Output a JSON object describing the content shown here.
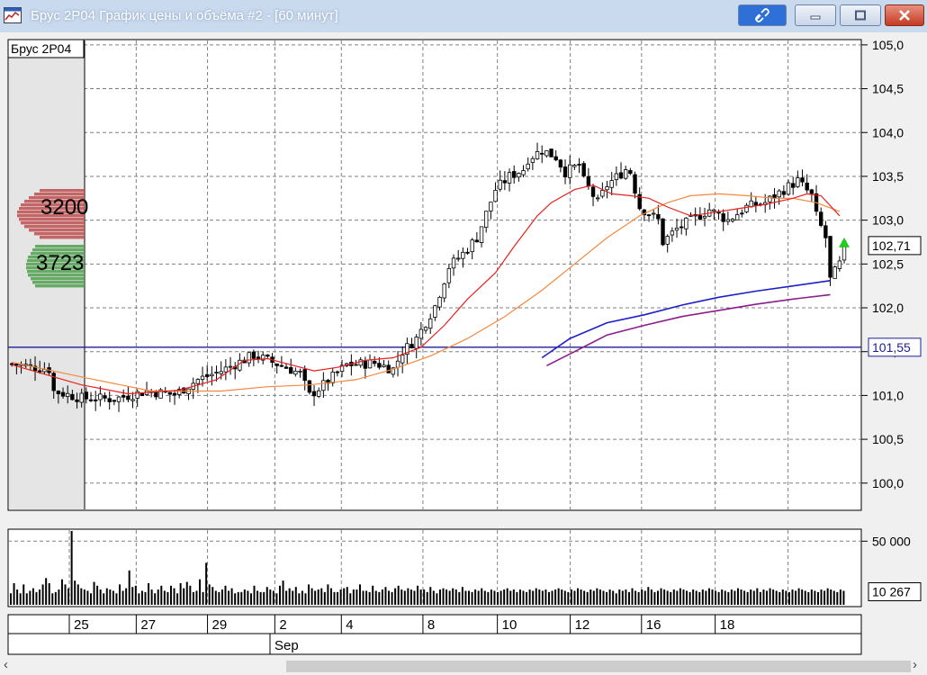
{
  "window": {
    "title": "Брус 2P04 График цены и объёма #2 - [60 минут]",
    "buttons": {
      "link": "link-icon",
      "minimize": "minimize-icon",
      "maximize": "maximize-icon",
      "close": "close-icon"
    }
  },
  "colors": {
    "bg": "#ffffff",
    "grid": "#808080",
    "candle": "#000000",
    "ma_fast": "#e8211f",
    "ma_slow": "#f5883e",
    "ma_blue": "#1e1ec8",
    "ma_purple": "#8a1e8a",
    "level_line": "#1e1e96",
    "profile_red": "#c05050",
    "profile_green": "#50a050",
    "arrow": "#22cc22"
  },
  "chart_data": [
    {
      "type": "candlestick",
      "title": "Брус 2P04",
      "ylim": [
        99.7,
        105.05
      ],
      "y_ticks": [
        "105,0",
        "104,5",
        "104,0",
        "103,5",
        "103,0",
        "102,5",
        "102,0",
        "101,5",
        "101,0",
        "100,5",
        "100,0"
      ],
      "y_tick_values": [
        105.0,
        104.5,
        104.0,
        103.5,
        103.0,
        102.5,
        102.0,
        101.5,
        101.0,
        100.5,
        100.0
      ],
      "last_price": {
        "value": 102.71,
        "label": "102,71"
      },
      "level": {
        "value": 101.55,
        "label": "101,55"
      },
      "grid": true,
      "x_dates": [
        "25",
        "27",
        "29",
        "2",
        "4",
        "8",
        "10",
        "12",
        "16",
        "18"
      ],
      "month_label": "Sep",
      "close_path": [
        [
          0,
          101.36
        ],
        [
          4,
          101.33
        ],
        [
          8,
          101.3
        ],
        [
          9,
          101.05
        ],
        [
          15,
          100.97
        ],
        [
          22,
          100.96
        ],
        [
          29,
          101.05
        ],
        [
          35,
          101.01
        ],
        [
          40,
          101.18
        ],
        [
          45,
          101.28
        ],
        [
          52,
          101.46
        ],
        [
          59,
          101.32
        ],
        [
          62,
          101.25
        ],
        [
          64,
          101.0
        ],
        [
          67,
          101.12
        ],
        [
          72,
          101.35
        ],
        [
          78,
          101.37
        ],
        [
          82,
          101.3
        ],
        [
          84,
          101.5
        ],
        [
          87,
          101.65
        ],
        [
          91,
          102.02
        ],
        [
          94,
          102.47
        ],
        [
          97,
          102.62
        ],
        [
          100,
          102.8
        ],
        [
          104,
          103.35
        ],
        [
          107,
          103.5
        ],
        [
          110,
          103.58
        ],
        [
          111,
          103.7
        ],
        [
          114,
          103.8
        ],
        [
          117,
          103.72
        ],
        [
          119,
          103.55
        ],
        [
          122,
          103.63
        ],
        [
          123,
          103.45
        ],
        [
          126,
          103.2
        ],
        [
          128,
          103.4
        ],
        [
          132,
          103.58
        ],
        [
          133,
          103.55
        ],
        [
          135,
          103.15
        ],
        [
          139,
          103.0
        ],
        [
          140,
          102.75
        ],
        [
          143,
          102.9
        ],
        [
          146,
          103.0
        ],
        [
          150,
          103.12
        ],
        [
          154,
          103.0
        ],
        [
          158,
          103.15
        ],
        [
          162,
          103.2
        ],
        [
          166,
          103.35
        ],
        [
          169,
          103.45
        ],
        [
          172,
          103.28
        ],
        [
          173,
          103.05
        ],
        [
          175,
          102.8
        ],
        [
          176,
          102.32
        ],
        [
          178,
          102.5
        ],
        [
          179,
          102.71
        ]
      ],
      "ma_fast": [
        [
          0,
          101.35
        ],
        [
          15,
          101.12
        ],
        [
          25,
          101.02
        ],
        [
          36,
          101.06
        ],
        [
          44,
          101.18
        ],
        [
          50,
          101.4
        ],
        [
          55,
          101.42
        ],
        [
          60,
          101.35
        ],
        [
          65,
          101.28
        ],
        [
          70,
          101.32
        ],
        [
          76,
          101.4
        ],
        [
          82,
          101.43
        ],
        [
          88,
          101.55
        ],
        [
          93,
          101.8
        ],
        [
          98,
          102.1
        ],
        [
          104,
          102.4
        ],
        [
          108,
          102.7
        ],
        [
          113,
          103.05
        ],
        [
          116,
          103.2
        ],
        [
          121,
          103.35
        ],
        [
          125,
          103.4
        ],
        [
          129,
          103.3
        ],
        [
          133,
          103.28
        ],
        [
          137,
          103.25
        ],
        [
          141,
          103.15
        ],
        [
          146,
          103.05
        ],
        [
          150,
          103.08
        ],
        [
          156,
          103.13
        ],
        [
          162,
          103.18
        ],
        [
          168,
          103.25
        ],
        [
          171,
          103.3
        ],
        [
          174,
          103.28
        ],
        [
          178,
          103.05
        ]
      ],
      "ma_slow": [
        [
          0,
          101.38
        ],
        [
          16,
          101.2
        ],
        [
          30,
          101.05
        ],
        [
          45,
          101.05
        ],
        [
          55,
          101.1
        ],
        [
          64,
          101.12
        ],
        [
          74,
          101.18
        ],
        [
          82,
          101.3
        ],
        [
          90,
          101.45
        ],
        [
          98,
          101.65
        ],
        [
          106,
          101.9
        ],
        [
          114,
          102.2
        ],
        [
          121,
          102.5
        ],
        [
          128,
          102.8
        ],
        [
          135,
          103.05
        ],
        [
          141,
          103.2
        ],
        [
          146,
          103.28
        ],
        [
          152,
          103.3
        ],
        [
          158,
          103.28
        ],
        [
          164,
          103.25
        ],
        [
          168,
          103.25
        ],
        [
          173,
          103.2
        ],
        [
          178,
          103.1
        ]
      ],
      "ma_blue": [
        [
          114,
          101.43
        ],
        [
          120,
          101.65
        ],
        [
          128,
          101.83
        ],
        [
          136,
          101.92
        ],
        [
          144,
          102.03
        ],
        [
          152,
          102.12
        ],
        [
          160,
          102.19
        ],
        [
          168,
          102.25
        ],
        [
          176,
          102.31
        ]
      ],
      "ma_purple": [
        [
          115,
          101.34
        ],
        [
          121,
          101.5
        ],
        [
          128,
          101.69
        ],
        [
          136,
          101.8
        ],
        [
          144,
          101.9
        ],
        [
          152,
          101.97
        ],
        [
          160,
          102.04
        ],
        [
          168,
          102.1
        ],
        [
          176,
          102.15
        ]
      ],
      "volume_profile_labels": [
        {
          "label": "3200",
          "value": 3200
        },
        {
          "label": "3723",
          "value": 3723
        }
      ]
    },
    {
      "type": "bar",
      "title": "",
      "ylim": [
        0,
        58000
      ],
      "y_ticks": [
        "50 000"
      ],
      "y_tick_values": [
        50000
      ],
      "last_volume": {
        "value": 10267,
        "label": "10 267"
      },
      "volume_bars": [
        9000,
        17000,
        12000,
        9000,
        16000,
        9000,
        11000,
        13000,
        10000,
        12000,
        16000,
        21000,
        17000,
        9000,
        10000,
        12000,
        20000,
        16000,
        13000,
        58000,
        19000,
        16000,
        13000,
        12000,
        11000,
        9000,
        18000,
        15000,
        12000,
        9000,
        13000,
        12000,
        11000,
        9000,
        16000,
        11000,
        13000,
        27000,
        14000,
        15000,
        9000,
        11000,
        10000,
        17000,
        12000,
        9000,
        12000,
        15000,
        11000,
        10000,
        15000,
        13000,
        9000,
        17000,
        13000,
        18000,
        15000,
        10000,
        11000,
        20000,
        10000,
        33000,
        16000,
        14000,
        11000,
        10000,
        12000,
        15000,
        11000,
        13000,
        9000,
        10000,
        10000,
        12000,
        11000,
        9000,
        15000,
        11000,
        10000,
        10000,
        14000,
        12000,
        11000,
        9000,
        15000,
        19000,
        11000,
        13000,
        11000,
        14000,
        9000,
        11000,
        9000,
        16000,
        13000,
        11000,
        12000,
        13000,
        10000,
        16000,
        13000,
        10000,
        10000,
        12000,
        13000,
        14000,
        9000,
        12000,
        12000,
        16000,
        11000,
        11000,
        10000,
        15000,
        11000,
        10000,
        12000,
        14000,
        11000,
        10000,
        13000,
        15000,
        12000,
        11000,
        13000,
        12000,
        11000,
        15000,
        12000,
        12000,
        10000,
        14000,
        11000,
        9000,
        12000,
        13000,
        12000,
        11000,
        13000,
        12000,
        10000,
        14000,
        11000,
        11000,
        10000,
        12000,
        11000,
        13000,
        11000,
        10000,
        12000,
        11000,
        10000,
        11000,
        12000,
        13000,
        11000,
        12000,
        10000,
        12000,
        11000,
        10000,
        12000,
        11000,
        13000,
        12000,
        11000,
        12000,
        10000,
        11000,
        12000,
        13000,
        12000,
        11000,
        10000,
        12000,
        11000,
        13000,
        12000,
        11000,
        10000,
        12000,
        11000,
        13000,
        12000,
        11000,
        10000,
        12000,
        11000,
        9000,
        12000,
        11000,
        12000,
        10000,
        13000,
        11000,
        10000,
        12000,
        11000,
        14000,
        12000,
        10000,
        11000,
        13000,
        12000,
        11000,
        10000,
        12000,
        11000,
        13000,
        12000,
        11000,
        10000,
        12000,
        11000,
        10000,
        12000,
        11000,
        13000,
        12000,
        11000,
        10000,
        12000,
        11000,
        10000,
        12000,
        11000,
        13000,
        12000,
        11000,
        10000,
        12000,
        11000,
        13000,
        10000,
        12000,
        11000,
        13000,
        12000,
        11000,
        10000,
        12000,
        11000,
        10000,
        12000,
        11000,
        13000,
        12000,
        11000,
        10000,
        12000,
        11000,
        10000,
        12000,
        11000,
        13000,
        12000,
        11000,
        10000,
        12000,
        11000
      ]
    }
  ]
}
